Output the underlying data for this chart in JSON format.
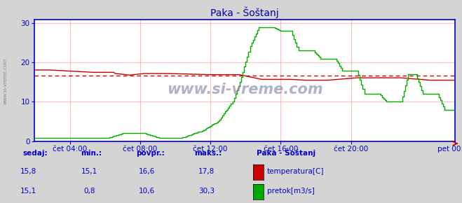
{
  "title": "Paka - Šoštanj",
  "watermark": "www.si-vreme.com",
  "bg_color": "#d4d4d4",
  "plot_bg_color": "#ffffff",
  "ylim": [
    0,
    31
  ],
  "yticks": [
    0,
    10,
    20,
    30
  ],
  "xlim": [
    0,
    287
  ],
  "xtick_positions": [
    24,
    72,
    120,
    168,
    216,
    287
  ],
  "xtick_labels": [
    "čet 04:00",
    "čet 08:00",
    "čet 12:00",
    "čet 16:00",
    "čet 20:00",
    "pet 00:00"
  ],
  "grid_color": "#ffaaaa",
  "axis_color": "#0000cc",
  "title_color": "#0000aa",
  "temp_color": "#cc0000",
  "flow_color": "#00aa00",
  "avg_line_color": "#cc0000",
  "avg_line_value": 16.6,
  "legend_labels": [
    "temperatura[C]",
    "pretok[m3/s]"
  ],
  "legend_colors": [
    "#cc0000",
    "#00aa00"
  ],
  "table_header": [
    "sedaj:",
    "min.:",
    "povpr.:",
    "maks.:"
  ],
  "table_temp": [
    "15,8",
    "15,1",
    "16,6",
    "17,8"
  ],
  "table_flow": [
    "15,1",
    "0,8",
    "10,6",
    "30,3"
  ],
  "station_label": "Paka - Šoštanj"
}
